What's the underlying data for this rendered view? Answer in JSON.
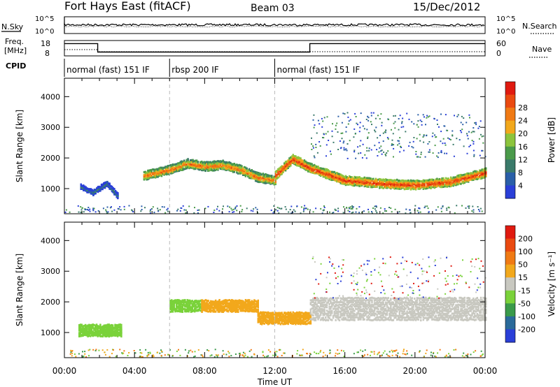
{
  "header": {
    "station": "Fort Hays East (fitACF)",
    "beam": "Beam 03",
    "date": "15/Dec/2012"
  },
  "top_panels": {
    "nsky_label": "N.Sky",
    "nsky_ticks": [
      "10^5",
      "10^0"
    ],
    "nsearch_label": "N.Search",
    "nsearch_ticks": [
      "10^5",
      "10^0"
    ],
    "freq_label_1": "Freq.",
    "freq_label_2": "[MHz]",
    "freq_ticks": [
      "18",
      "8"
    ],
    "nave_label": "Nave",
    "nave_ticks": [
      "60",
      "0"
    ],
    "cpid_label": "CPID",
    "cpid_segments": [
      {
        "label": "normal (fast) 151 IF",
        "start_h": 0,
        "end_h": 6
      },
      {
        "label": "rbsp 200 IF",
        "start_h": 6,
        "end_h": 12
      },
      {
        "label": "normal (fast) 151 IF",
        "start_h": 12,
        "end_h": 24
      }
    ],
    "freq_mhz": [
      {
        "start_h": 0,
        "end_h": 1.9,
        "value": 16
      },
      {
        "start_h": 1.9,
        "end_h": 14,
        "value": 10.5
      },
      {
        "start_h": 14,
        "end_h": 24,
        "value": 16
      }
    ]
  },
  "chart_data": [
    {
      "type": "heatmap",
      "name": "power",
      "xlabel": "Time UT",
      "ylabel": "Slant Range [km]",
      "xlim": [
        0,
        24
      ],
      "ylim": [
        180,
        4600
      ],
      "x_ticks": [
        "00:00",
        "04:00",
        "08:00",
        "12:00",
        "16:00",
        "20:00",
        "00:00"
      ],
      "y_ticks": [
        1000,
        2000,
        3000,
        4000
      ],
      "colorbar_label": "Power [dB]",
      "colorbar_ticks": [
        4,
        8,
        12,
        16,
        20,
        24,
        28
      ],
      "colorbar_colors": [
        "#2a3fd8",
        "#2a5fa8",
        "#3a7a6a",
        "#4a9a4a",
        "#8cc43c",
        "#f2a81c",
        "#f07a14",
        "#ea4a10",
        "#e01a10"
      ],
      "bands": [
        {
          "points": [
            [
              0.9,
              1100
            ],
            [
              1.6,
              900
            ],
            [
              2.4,
              1200
            ],
            [
              3.0,
              800
            ]
          ],
          "level": 2
        },
        {
          "points": [
            [
              4.5,
              1450
            ],
            [
              6.0,
              1650
            ],
            [
              7.0,
              1850
            ],
            [
              8.0,
              1750
            ],
            [
              9.0,
              1800
            ],
            [
              10.0,
              1650
            ],
            [
              11.0,
              1400
            ],
            [
              12.0,
              1300
            ]
          ],
          "level": 6
        },
        {
          "points": [
            [
              12.0,
              1450
            ],
            [
              13.0,
              2000
            ],
            [
              14.0,
              1700
            ],
            [
              16.0,
              1300
            ],
            [
              18.0,
              1200
            ],
            [
              20.0,
              1150
            ],
            [
              22.0,
              1250
            ],
            [
              24.0,
              1550
            ]
          ],
          "level": 7
        }
      ]
    },
    {
      "type": "heatmap",
      "name": "velocity",
      "xlabel": "Time UT",
      "ylabel": "Slant Range [km]",
      "xlim": [
        0,
        24
      ],
      "ylim": [
        180,
        4600
      ],
      "x_ticks": [
        "00:00",
        "04:00",
        "08:00",
        "12:00",
        "16:00",
        "20:00",
        "00:00"
      ],
      "y_ticks": [
        1000,
        2000,
        3000,
        4000
      ],
      "colorbar_label": "Velocity [m s⁻¹]",
      "colorbar_ticks": [
        200,
        100,
        50,
        15,
        -15,
        -50,
        -100,
        -200
      ],
      "colorbar_colors": [
        "#2a3fd8",
        "#2a6a9a",
        "#3a9a4a",
        "#7ad23a",
        "#c8c8c0",
        "#f2a81c",
        "#f07a14",
        "#ea4a10",
        "#e01a10"
      ],
      "regions": [
        {
          "start_h": 0.8,
          "end_h": 3.2,
          "center_km": 1100,
          "color": "#7ad23a"
        },
        {
          "start_h": 6.0,
          "end_h": 7.8,
          "center_km": 1900,
          "color": "#7ad23a"
        },
        {
          "start_h": 7.8,
          "end_h": 11.0,
          "center_km": 1900,
          "color": "#f2a81c"
        },
        {
          "start_h": 11.0,
          "end_h": 14.0,
          "center_km": 1500,
          "color": "#f2a81c"
        },
        {
          "start_h": 14.0,
          "end_h": 24.0,
          "center_km": 1800,
          "color": "#c8c8c0"
        }
      ]
    }
  ]
}
